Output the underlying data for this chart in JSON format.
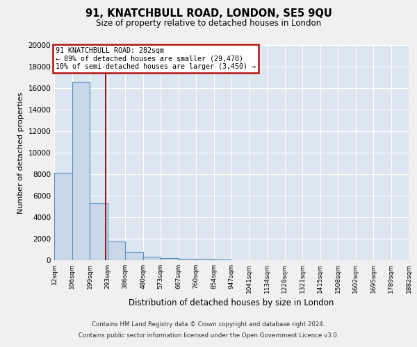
{
  "title": "91, KNATCHBULL ROAD, LONDON, SE5 9QU",
  "subtitle": "Size of property relative to detached houses in London",
  "xlabel": "Distribution of detached houses by size in London",
  "ylabel": "Number of detached properties",
  "bin_labels": [
    "12sqm",
    "106sqm",
    "199sqm",
    "293sqm",
    "386sqm",
    "480sqm",
    "573sqm",
    "667sqm",
    "760sqm",
    "854sqm",
    "947sqm",
    "1041sqm",
    "1134sqm",
    "1228sqm",
    "1321sqm",
    "1415sqm",
    "1508sqm",
    "1602sqm",
    "1695sqm",
    "1789sqm",
    "1882sqm"
  ],
  "bin_edges": [
    12,
    106,
    199,
    293,
    386,
    480,
    573,
    667,
    760,
    854,
    947,
    1041,
    1134,
    1228,
    1321,
    1415,
    1508,
    1602,
    1695,
    1789,
    1882
  ],
  "bar_heights": [
    8100,
    16600,
    5300,
    1750,
    800,
    350,
    200,
    150,
    100,
    80,
    0,
    0,
    0,
    0,
    0,
    0,
    0,
    0,
    0,
    0
  ],
  "bar_color": "#c8d8ea",
  "bar_edge_color": "#5b8db8",
  "property_line_x": 282,
  "property_line_color": "#9b1010",
  "annotation_line1": "91 KNATCHBULL ROAD: 282sqm",
  "annotation_line2": "← 89% of detached houses are smaller (29,470)",
  "annotation_line3": "10% of semi-detached houses are larger (3,450) →",
  "annotation_box_edge_color": "#b01010",
  "ylim": [
    0,
    20000
  ],
  "yticks": [
    0,
    2000,
    4000,
    6000,
    8000,
    10000,
    12000,
    14000,
    16000,
    18000,
    20000
  ],
  "background_color": "#dce6f0",
  "grid_color": "#ffffff",
  "footer1": "Contains HM Land Registry data © Crown copyright and database right 2024.",
  "footer2": "Contains public sector information licensed under the Open Government Licence v3.0."
}
